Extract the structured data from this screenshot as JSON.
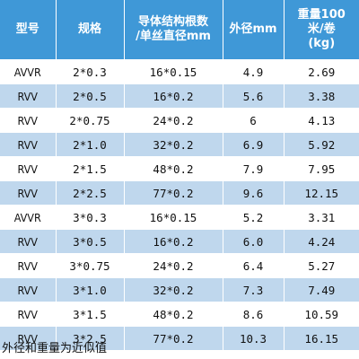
{
  "table": {
    "headers": {
      "model": "型号",
      "spec": "规格",
      "conductor_line1": "导体结构根数",
      "conductor_line2": "/单丝直径mm",
      "outer_diameter": "外径mm",
      "weight_line1": "重量100",
      "weight_line2": "米/卷",
      "weight_line3": "(kg)"
    },
    "rows": [
      {
        "model": "AVVR",
        "spec": "2*0.3",
        "conductor": "16*0.15",
        "od": "4.9",
        "weight": "2.69"
      },
      {
        "model": "RVV",
        "spec": "2*0.5",
        "conductor": "16*0.2",
        "od": "5.6",
        "weight": "3.38"
      },
      {
        "model": "RVV",
        "spec": "2*0.75",
        "conductor": "24*0.2",
        "od": "6",
        "weight": "4.13"
      },
      {
        "model": "RVV",
        "spec": "2*1.0",
        "conductor": "32*0.2",
        "od": "6.9",
        "weight": "5.92"
      },
      {
        "model": "RVV",
        "spec": "2*1.5",
        "conductor": "48*0.2",
        "od": "7.9",
        "weight": "7.95"
      },
      {
        "model": "RVV",
        "spec": "2*2.5",
        "conductor": "77*0.2",
        "od": "9.6",
        "weight": "12.15"
      },
      {
        "model": "AVVR",
        "spec": "3*0.3",
        "conductor": "16*0.15",
        "od": "5.2",
        "weight": "3.31"
      },
      {
        "model": "RVV",
        "spec": "3*0.5",
        "conductor": "16*0.2",
        "od": "6.0",
        "weight": "4.24"
      },
      {
        "model": "RVV",
        "spec": "3*0.75",
        "conductor": "24*0.2",
        "od": "6.4",
        "weight": "5.27"
      },
      {
        "model": "RVV",
        "spec": "3*1.0",
        "conductor": "32*0.2",
        "od": "7.3",
        "weight": "7.49"
      },
      {
        "model": "RVV",
        "spec": "3*1.5",
        "conductor": "48*0.2",
        "od": "8.6",
        "weight": "10.59"
      },
      {
        "model": "RVV",
        "spec": "3*2.5",
        "conductor": "77*0.2",
        "od": "10.3",
        "weight": "16.15"
      }
    ]
  },
  "footnote": "外径和重量为近似值",
  "colors": {
    "header_bg": "#3f98d7",
    "header_text": "#ffffff",
    "row_alt_bg": "#bfd7ed",
    "row_bg": "#ffffff"
  }
}
